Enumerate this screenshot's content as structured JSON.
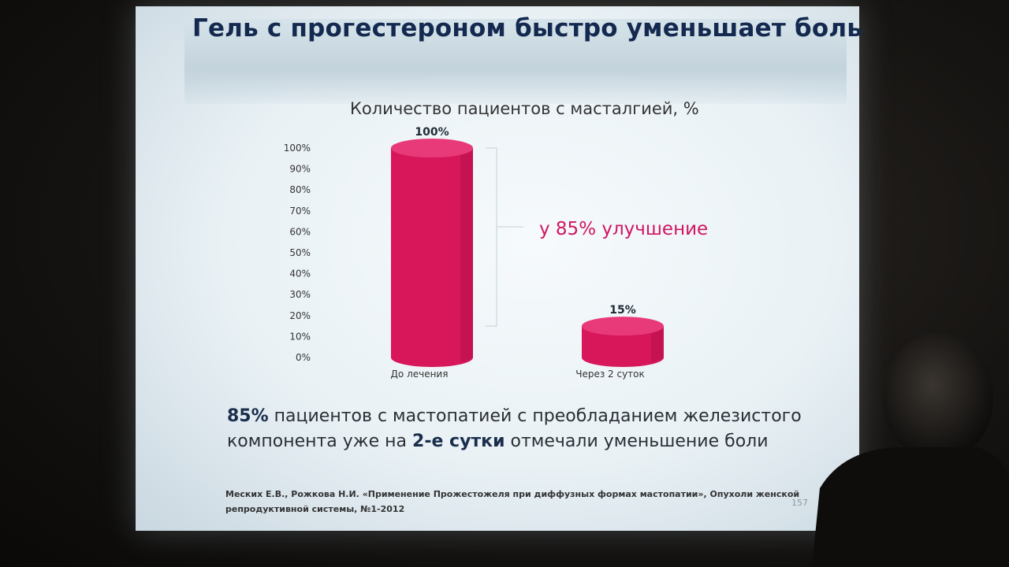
{
  "slide": {
    "title": "Гель с прогестероном быстро уменьшает боль",
    "annotation": "у 85% улучшение",
    "summary": {
      "part1_bold": "85%",
      "part2": " пациентов с мастопатией с преобладанием железистого компонента уже на ",
      "part3_bold": "2-е сутки",
      "part4": " отмечали уменьшение боли"
    },
    "citation": "Меских Е.В., Рожкова Н.И. «Применение Прожестожеля при диффузных формах мастопатии», Опухоли женской репродуктивной системы, №1-2012",
    "page_number": "157"
  },
  "chart_data": {
    "type": "bar",
    "title": "Количество пациентов с масталгией, %",
    "categories": [
      "До лечения",
      "Через 2 суток"
    ],
    "values": [
      100,
      15
    ],
    "data_labels": [
      "100%",
      "15%"
    ],
    "y_ticks": [
      "0%",
      "10%",
      "20%",
      "30%",
      "40%",
      "50%",
      "60%",
      "70%",
      "80%",
      "90%",
      "100%"
    ],
    "ylim": [
      0,
      100
    ],
    "grid": false,
    "bar_color": "#d8175a",
    "bar_top_color": "#e83a78"
  },
  "colors": {
    "accent": "#d01563",
    "title_text": "#13294f"
  }
}
